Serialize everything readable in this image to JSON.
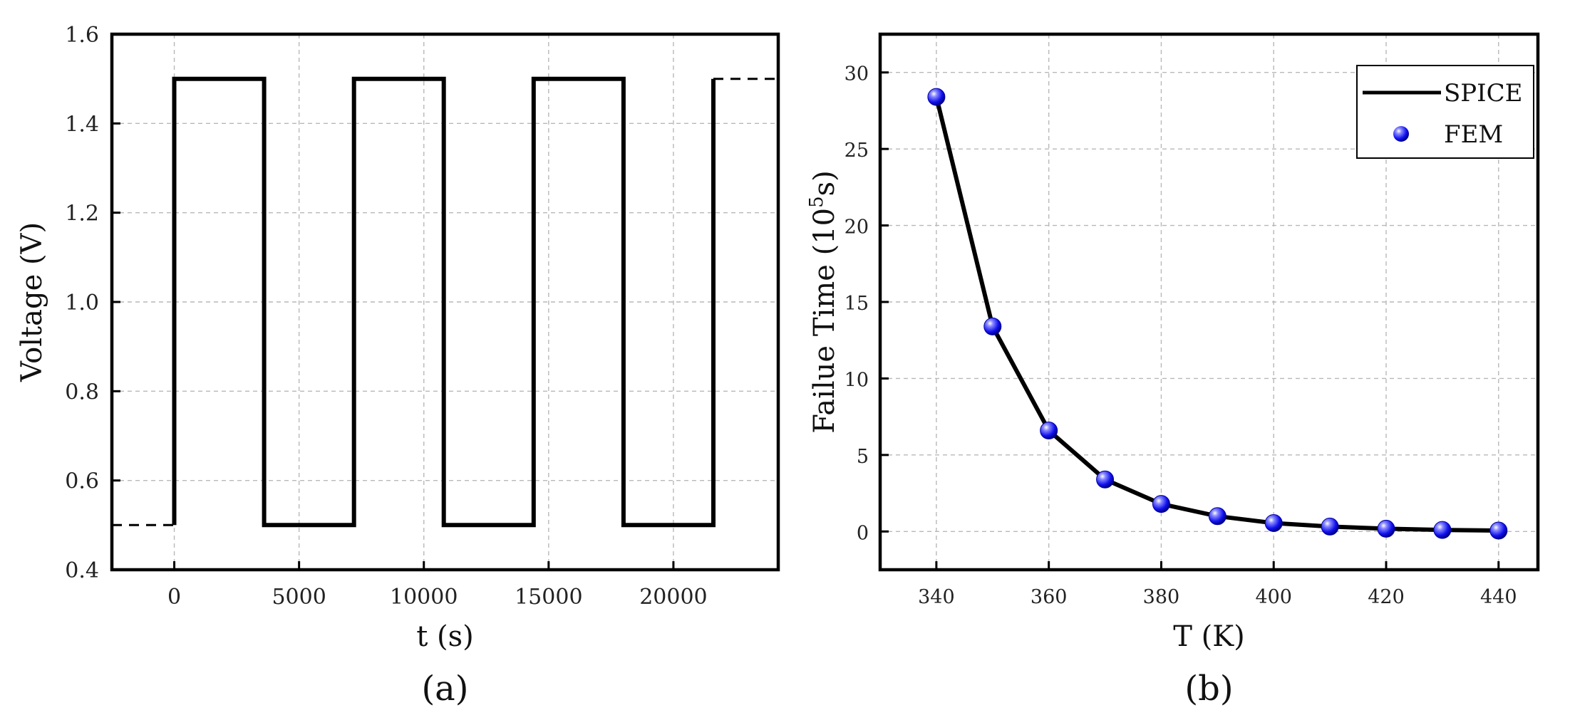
{
  "chart_data": [
    {
      "type": "line",
      "caption": "(a)",
      "xlabel": "t  (s)",
      "ylabel": "Voltage (V)",
      "xlim": [
        -2500,
        24200
      ],
      "ylim": [
        0.4,
        1.6
      ],
      "xticks": [
        0,
        5000,
        10000,
        15000,
        20000
      ],
      "yticks": [
        0.4,
        0.6,
        0.8,
        1.0,
        1.2,
        1.4,
        1.6
      ],
      "ytick_labels": [
        "0.4",
        "0.6",
        "0.8",
        "1.0",
        "1.2",
        "1.4",
        "1.6"
      ],
      "grid": true,
      "series": [
        {
          "style": "solid",
          "x": [
            0,
            0,
            3600,
            3600,
            7200,
            7200,
            10800,
            10800,
            14400,
            14400,
            18000,
            18000,
            21600,
            21600
          ],
          "y": [
            0.5,
            1.5,
            1.5,
            0.5,
            0.5,
            1.5,
            1.5,
            0.5,
            0.5,
            1.5,
            1.5,
            0.5,
            0.5,
            1.5
          ]
        },
        {
          "style": "dashed",
          "x": [
            -2500,
            0
          ],
          "y": [
            0.5,
            0.5
          ]
        },
        {
          "style": "dashed",
          "x": [
            21600,
            24200
          ],
          "y": [
            1.5,
            1.5
          ]
        }
      ]
    },
    {
      "type": "line",
      "caption": "(b)",
      "xlabel": "T (K)",
      "ylabel": "Failue Time  (10",
      "ylabel_sup": "5",
      "ylabel_tail": "s)",
      "xlim": [
        330,
        447
      ],
      "ylim": [
        -2.5,
        32.5
      ],
      "xticks": [
        340,
        360,
        380,
        400,
        420,
        440
      ],
      "yticks": [
        0,
        5,
        10,
        15,
        20,
        25,
        30
      ],
      "grid": true,
      "legend_position": "top-right",
      "series": [
        {
          "name": "SPICE",
          "style": "solid-line",
          "color": "#000000",
          "x": [
            340,
            350,
            360,
            370,
            380,
            390,
            400,
            410,
            420,
            430,
            440
          ],
          "y": [
            28.4,
            13.4,
            6.6,
            3.4,
            1.8,
            1.0,
            0.55,
            0.32,
            0.18,
            0.1,
            0.06
          ]
        },
        {
          "name": "FEM",
          "style": "markers",
          "color": "#1a1aff",
          "x": [
            340,
            350,
            360,
            370,
            380,
            390,
            400,
            410,
            420,
            430,
            440
          ],
          "y": [
            28.4,
            13.4,
            6.6,
            3.4,
            1.8,
            1.0,
            0.55,
            0.32,
            0.18,
            0.1,
            0.06
          ]
        }
      ]
    }
  ]
}
